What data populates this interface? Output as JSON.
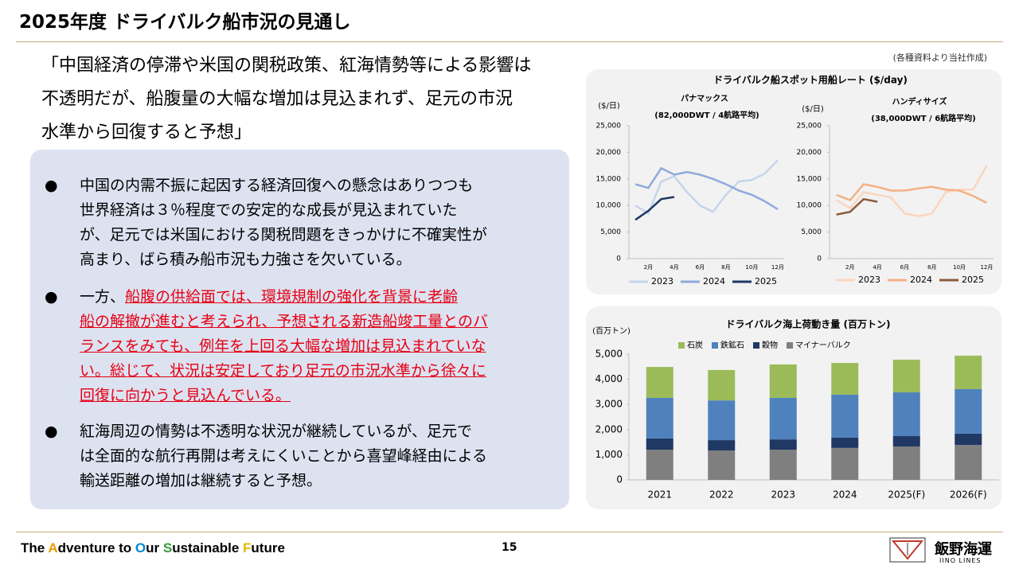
{
  "title": "2025年度 ドライバルク船市況の見通し",
  "quote_lines": [
    "「中国経済の停滞や米国の関税政策、紅海情勢等による影響は",
    "不透明だが、船腹量の大幅な増加は見込まれず、足元の市況",
    "水準から回復すると予想」"
  ],
  "source": "(各種資料より当社作成)",
  "bullets": [
    {
      "lines": [
        "中国の内需不振に起因する経済回復への懸念はありつつも",
        "世界経済は３％程度での安定的な成長が見込まれていた",
        "が、足元では米国における関税問題をきっかけに不確実性が",
        "高まり、ばら積み船市況も力強さを欠いている。"
      ]
    },
    {
      "lead": "一方、",
      "lines": [
        "船腹の供給面では、環境規制の強化を背景に老齢",
        "船の解撤が進むと考えられ、予想される新造船竣工量とのバ",
        "ランスをみても、例年を上回る大幅な増加は見込まれていな",
        "い。総じて、状況は安定しており足元の市況水準から徐々に",
        "回復に向かうと見込んでいる。"
      ]
    },
    {
      "lines": [
        "紅海周辺の情勢は不透明な状況が継続しているが、足元で",
        "は全面的な航行再開は考えにくいことから喜望峰経由による",
        "輸送距離の増加は継続すると予想。"
      ]
    }
  ],
  "spot_rate_title": "ドライバルク船スポット用船レート ($/day)",
  "chart_data": [
    {
      "type": "line",
      "title": "パナマックス",
      "subtitle": "(82,000DWT / 4航路平均)",
      "ylabel": "($/日)",
      "categories": [
        null,
        "2月",
        null,
        "4月",
        null,
        "6月",
        null,
        "8月",
        null,
        "10月",
        null,
        "12月"
      ],
      "ylim": [
        0,
        25000
      ],
      "yticks": [
        0,
        {
          "value": 5000,
          "label": "5,000"
        },
        {
          "value": 10000,
          "label": "10,000"
        },
        {
          "value": 15000,
          "label": "15,000"
        },
        {
          "value": 20000,
          "label": "20,000"
        },
        {
          "value": 25000,
          "label": "25,000"
        }
      ],
      "series": [
        {
          "name": "2023",
          "color": "#c5d5ea",
          "values": [
            10000,
            8500,
            14500,
            15500,
            12500,
            10000,
            8800,
            12000,
            14500,
            14800,
            16000,
            18500
          ]
        },
        {
          "name": "2024",
          "color": "#8eaadb",
          "values": [
            14000,
            13300,
            17000,
            15800,
            16300,
            15800,
            15000,
            14000,
            12800,
            12000,
            10800,
            9300
          ]
        },
        {
          "name": "2025",
          "color": "#1f3864",
          "values": [
            7300,
            9000,
            11200,
            11600,
            null,
            null,
            null,
            null,
            null,
            null,
            null,
            null
          ]
        }
      ]
    },
    {
      "type": "line",
      "title": "ハンディサイズ",
      "subtitle": "(38,000DWT / 6航路平均)",
      "ylabel": "($/日)",
      "categories": [
        null,
        "2月",
        null,
        "4月",
        null,
        "6月",
        null,
        "8月",
        null,
        "10月",
        null,
        "12月"
      ],
      "ylim": [
        0,
        25000
      ],
      "yticks": [
        0,
        {
          "value": 5000,
          "label": "5,000"
        },
        {
          "value": 10000,
          "label": "10,000"
        },
        {
          "value": 15000,
          "label": "15,000"
        },
        {
          "value": 20000,
          "label": "20,000"
        },
        {
          "value": 25000,
          "label": "25,000"
        }
      ],
      "series": [
        {
          "name": "2023",
          "color": "#fbd5bf",
          "values": [
            11000,
            9500,
            12500,
            12000,
            11500,
            8500,
            8000,
            8500,
            12500,
            13000,
            13000,
            17500
          ]
        },
        {
          "name": "2024",
          "color": "#f4b183",
          "values": [
            12000,
            11000,
            14000,
            13500,
            12800,
            12800,
            13200,
            13500,
            13000,
            12800,
            11800,
            10500
          ]
        },
        {
          "name": "2025",
          "color": "#8c5a3c",
          "values": [
            8300,
            8800,
            11200,
            10700,
            null,
            null,
            null,
            null,
            null,
            null,
            null,
            null
          ]
        }
      ]
    },
    {
      "type": "bar",
      "stacked": true,
      "title": "ドライバルク海上荷動き量 (百万トン)",
      "ylabel": "(百万トン)",
      "categories": [
        "2021",
        "2022",
        "2023",
        "2024",
        "2025(F)",
        "2026(F)"
      ],
      "ylim": [
        0,
        5000
      ],
      "yticks": [
        0,
        {
          "value": 1000,
          "label": "1,000"
        },
        {
          "value": 2000,
          "label": "2,000"
        },
        {
          "value": 3000,
          "label": "3,000"
        },
        {
          "value": 4000,
          "label": "4,000"
        },
        {
          "value": 5000,
          "label": "5,000"
        }
      ],
      "series": [
        {
          "name": "石炭",
          "color": "#9bbb59",
          "values": [
            1230,
            1210,
            1330,
            1260,
            1300,
            1330
          ]
        },
        {
          "name": "鉄鉱石",
          "color": "#4f81bd",
          "values": [
            1610,
            1580,
            1650,
            1710,
            1740,
            1770
          ]
        },
        {
          "name": "穀物",
          "color": "#1f3864",
          "values": [
            450,
            410,
            410,
            410,
            410,
            450
          ]
        },
        {
          "name": "マイナーバルク",
          "color": "#7f7f7f",
          "values": [
            1200,
            1170,
            1200,
            1270,
            1330,
            1390
          ]
        }
      ]
    }
  ],
  "footer": {
    "slogan": [
      "The ",
      "A",
      "dventure to ",
      "O",
      "ur ",
      "S",
      "ustainable ",
      "F",
      "uture"
    ],
    "page": "15",
    "logo": "飯野海運",
    "logo_sub": "IINO LINES"
  }
}
